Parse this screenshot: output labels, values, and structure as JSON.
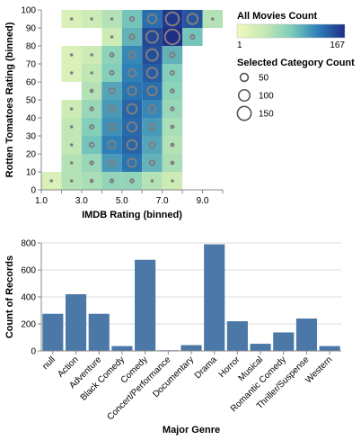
{
  "chart_data": [
    {
      "type": "heatmap",
      "xlabel": "IMDB Rating (binned)",
      "ylabel": "Rotten Tomatoes Rating (binned)",
      "x_ticks": [
        "1.0",
        "3.0",
        "5.0",
        "7.0",
        "9.0"
      ],
      "y_ticks": [
        "0",
        "10",
        "20",
        "30",
        "40",
        "50",
        "60",
        "70",
        "80",
        "90",
        "100"
      ],
      "x_bins": [
        1,
        2,
        3,
        4,
        5,
        6,
        7,
        8,
        9
      ],
      "y_bins": [
        0,
        10,
        20,
        30,
        40,
        50,
        60,
        70,
        80,
        90
      ],
      "xlim": [
        1,
        10
      ],
      "ylim": [
        0,
        100
      ],
      "color_legend": {
        "title": "All Movies Count",
        "min": "1",
        "max": "167",
        "min_value": 1,
        "max_value": 167
      },
      "size_legend": {
        "title": "Selected Category Count",
        "values": [
          50,
          100,
          150
        ],
        "labels": [
          "50",
          "100",
          "150"
        ]
      },
      "colors": {
        "low": "#eff9bd",
        "mid": "#4cb8c7",
        "high": "#1f2d86",
        "circle": "#7f7f7f"
      },
      "cells": [
        [
          1,
          0,
          2,
          2
        ],
        [
          2,
          0,
          5,
          3
        ],
        [
          3,
          0,
          6,
          4
        ],
        [
          4,
          0,
          9,
          6
        ],
        [
          5,
          0,
          9,
          7
        ],
        [
          6,
          0,
          5,
          3
        ],
        [
          7,
          0,
          3,
          2
        ],
        [
          2,
          10,
          5,
          3
        ],
        [
          3,
          10,
          8,
          6
        ],
        [
          4,
          10,
          30,
          25
        ],
        [
          5,
          10,
          55,
          45
        ],
        [
          6,
          10,
          20,
          15
        ],
        [
          7,
          10,
          6,
          4
        ],
        [
          2,
          20,
          4,
          3
        ],
        [
          3,
          20,
          15,
          12
        ],
        [
          4,
          20,
          45,
          40
        ],
        [
          5,
          20,
          70,
          60
        ],
        [
          6,
          20,
          25,
          20
        ],
        [
          7,
          20,
          5,
          4
        ],
        [
          2,
          30,
          4,
          3
        ],
        [
          3,
          30,
          12,
          9
        ],
        [
          4,
          30,
          35,
          30
        ],
        [
          5,
          30,
          65,
          55
        ],
        [
          6,
          30,
          30,
          25
        ],
        [
          7,
          30,
          6,
          4
        ],
        [
          2,
          40,
          3,
          2
        ],
        [
          3,
          40,
          8,
          6
        ],
        [
          4,
          40,
          30,
          25
        ],
        [
          5,
          40,
          70,
          60
        ],
        [
          6,
          40,
          40,
          35
        ],
        [
          7,
          40,
          8,
          6
        ],
        [
          3,
          50,
          5,
          4
        ],
        [
          4,
          50,
          25,
          20
        ],
        [
          5,
          50,
          55,
          45
        ],
        [
          6,
          50,
          60,
          55
        ],
        [
          7,
          50,
          10,
          7
        ],
        [
          2,
          60,
          2,
          2
        ],
        [
          3,
          60,
          4,
          3
        ],
        [
          4,
          60,
          12,
          9
        ],
        [
          5,
          60,
          45,
          40
        ],
        [
          6,
          60,
          80,
          70
        ],
        [
          7,
          60,
          12,
          9
        ],
        [
          2,
          70,
          2,
          2
        ],
        [
          3,
          70,
          3,
          2
        ],
        [
          4,
          70,
          10,
          8
        ],
        [
          5,
          70,
          40,
          30
        ],
        [
          6,
          70,
          100,
          85
        ],
        [
          7,
          70,
          20,
          15
        ],
        [
          4,
          80,
          3,
          2
        ],
        [
          5,
          80,
          20,
          15
        ],
        [
          6,
          80,
          110,
          90
        ],
        [
          7,
          80,
          167,
          140
        ],
        [
          8,
          80,
          15,
          10
        ],
        [
          2,
          90,
          2,
          2
        ],
        [
          3,
          90,
          3,
          2
        ],
        [
          4,
          90,
          5,
          3
        ],
        [
          5,
          90,
          15,
          10
        ],
        [
          6,
          90,
          60,
          50
        ],
        [
          7,
          90,
          140,
          110
        ],
        [
          8,
          90,
          90,
          70
        ],
        [
          9,
          90,
          5,
          3
        ]
      ]
    },
    {
      "type": "bar",
      "xlabel": "Major Genre",
      "ylabel": "Count of Records",
      "ylim": [
        0,
        800
      ],
      "y_ticks": [
        "0",
        "200",
        "400",
        "600",
        "800"
      ],
      "categories": [
        "null",
        "Action",
        "Adventure",
        "Black Comedy",
        "Comedy",
        "Concert/Performance",
        "Documentary",
        "Drama",
        "Horror",
        "Musical",
        "Romantic Comedy",
        "Thriller/Suspense",
        "Western"
      ],
      "values": [
        275,
        420,
        275,
        36,
        675,
        5,
        43,
        790,
        220,
        53,
        137,
        240,
        36
      ],
      "bar_color": "#4c78a8"
    }
  ]
}
